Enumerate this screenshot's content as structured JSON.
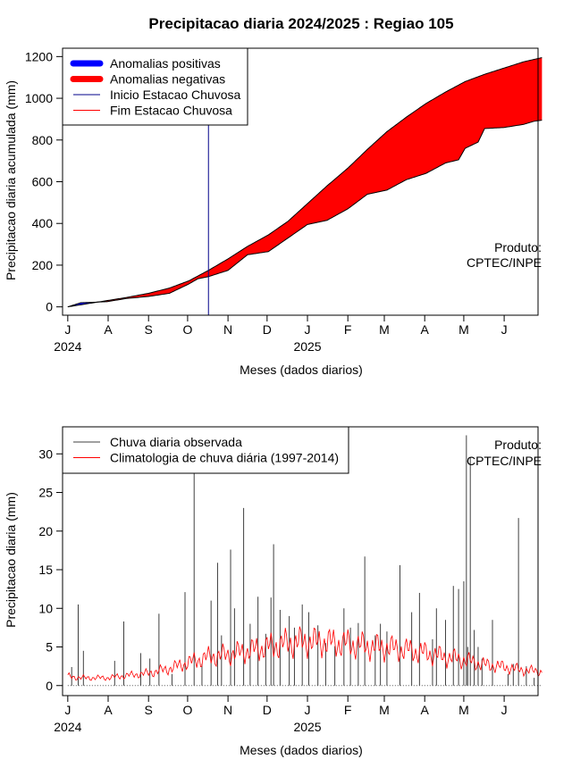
{
  "title": "Precipitacao diaria 2024/2025 : Regiao 105",
  "watermark": [
    "Produto:",
    "CPTEC/INPE"
  ],
  "chart_data": [
    {
      "type": "area",
      "ylabel": "Precipitacao diaria acumulada (mm)",
      "xlabel": "Meses (dados diarios)",
      "x_ticks": [
        "J",
        "A",
        "S",
        "O",
        "N",
        "D",
        "J",
        "F",
        "M",
        "A",
        "M",
        "J"
      ],
      "x_years": [
        "2024",
        "2025"
      ],
      "y_ticks": [
        0,
        200,
        400,
        600,
        800,
        1000,
        1200
      ],
      "xlim_days": [
        -4,
        361
      ],
      "ylim": [
        -40,
        1240
      ],
      "legend": {
        "position": "top-left",
        "items": [
          {
            "label": "Anomalias positivas",
            "color": "#0000ff"
          },
          {
            "label": "Anomalias negativas",
            "color": "#ff0000"
          },
          {
            "label": "Inicio Estacao Chuvosa",
            "color": "#00008b"
          },
          {
            "label": "Fim Estacao Chuvosa",
            "color": "#ff0000"
          }
        ]
      },
      "rainy_season_start_day": 108,
      "climatology_cumulative": {
        "day": [
          0,
          15,
          30,
          45,
          62,
          78,
          93,
          108,
          123,
          138,
          154,
          169,
          184,
          199,
          215,
          230,
          245,
          260,
          275,
          290,
          305,
          320,
          335,
          350,
          364
        ],
        "value": [
          0,
          15,
          30,
          45,
          65,
          90,
          125,
          175,
          230,
          290,
          345,
          410,
          495,
          580,
          665,
          755,
          840,
          910,
          975,
          1030,
          1080,
          1115,
          1145,
          1175,
          1195
        ]
      },
      "observed_cumulative": {
        "day": [
          0,
          10,
          20,
          30,
          45,
          62,
          78,
          93,
          100,
          108,
          123,
          138,
          154,
          169,
          184,
          199,
          215,
          230,
          245,
          260,
          275,
          290,
          300,
          305,
          315,
          320,
          335,
          350,
          358,
          364
        ],
        "value": [
          0,
          20,
          22,
          25,
          40,
          50,
          65,
          110,
          135,
          145,
          175,
          250,
          265,
          330,
          395,
          415,
          470,
          540,
          560,
          610,
          640,
          690,
          705,
          760,
          790,
          855,
          860,
          875,
          890,
          895
        ]
      }
    },
    {
      "type": "line",
      "ylabel": "Precipitacao diaria (mm)",
      "xlabel": "Meses (dados diarios)",
      "x_ticks": [
        "J",
        "A",
        "S",
        "O",
        "N",
        "D",
        "J",
        "F",
        "M",
        "A",
        "M",
        "J"
      ],
      "x_years": [
        "2024",
        "2025"
      ],
      "y_ticks": [
        0,
        5,
        10,
        15,
        20,
        25,
        30
      ],
      "xlim_days": [
        -4,
        361
      ],
      "ylim": [
        -1.3,
        33.5
      ],
      "legend": {
        "position": "top-left",
        "items": [
          {
            "label": "Chuva diaria observada",
            "color": "#404040"
          },
          {
            "label": "Climatologia de chuva diária (1997-2014)",
            "color": "#ff0000"
          }
        ]
      },
      "observed_daily_events": {
        "day": [
          3,
          8,
          12,
          36,
          43,
          56,
          63,
          70,
          80,
          90,
          97,
          103,
          110,
          115,
          118,
          125,
          128,
          135,
          140,
          146,
          152,
          156,
          158,
          163,
          170,
          174,
          180,
          185,
          192,
          198,
          205,
          212,
          217,
          223,
          228,
          236,
          240,
          245,
          255,
          264,
          270,
          280,
          283,
          290,
          296,
          300,
          304,
          306,
          307,
          309,
          312,
          315,
          318,
          326,
          338,
          342,
          346,
          352,
          358
        ],
        "mm": [
          2.4,
          10.5,
          4.5,
          3.2,
          8.3,
          4.2,
          3.5,
          9.3,
          1.5,
          12.1,
          27.8,
          2.8,
          11.0,
          15.9,
          6.5,
          17.6,
          10.0,
          23.0,
          8.0,
          11.5,
          6.7,
          11.4,
          18.3,
          9.8,
          9.0,
          7.5,
          10.5,
          9.5,
          7.8,
          5.5,
          5.1,
          10.0,
          7.5,
          8.1,
          16.7,
          6.5,
          8.0,
          7.0,
          15.6,
          9.5,
          12.0,
          6.0,
          10.0,
          8.5,
          12.9,
          12.5,
          13.5,
          32.4,
          5.0,
          29.6,
          7.2,
          5.0,
          3.5,
          8.5,
          1.5,
          2.8,
          21.7,
          2.5,
          1.0
        ]
      },
      "climatology_daily": {
        "day": [
          0,
          10,
          20,
          30,
          45,
          62,
          78,
          93,
          108,
          123,
          138,
          154,
          169,
          184,
          199,
          215,
          230,
          245,
          260,
          275,
          290,
          305,
          320,
          335,
          350,
          364
        ],
        "mm": [
          1.2,
          1.0,
          1.0,
          1.0,
          1.3,
          1.6,
          2.2,
          3.0,
          3.7,
          4.0,
          4.5,
          5.0,
          5.5,
          5.7,
          5.6,
          5.4,
          5.1,
          4.9,
          4.6,
          4.2,
          3.7,
          3.3,
          2.7,
          2.4,
          2.0,
          1.8
        ]
      }
    }
  ]
}
